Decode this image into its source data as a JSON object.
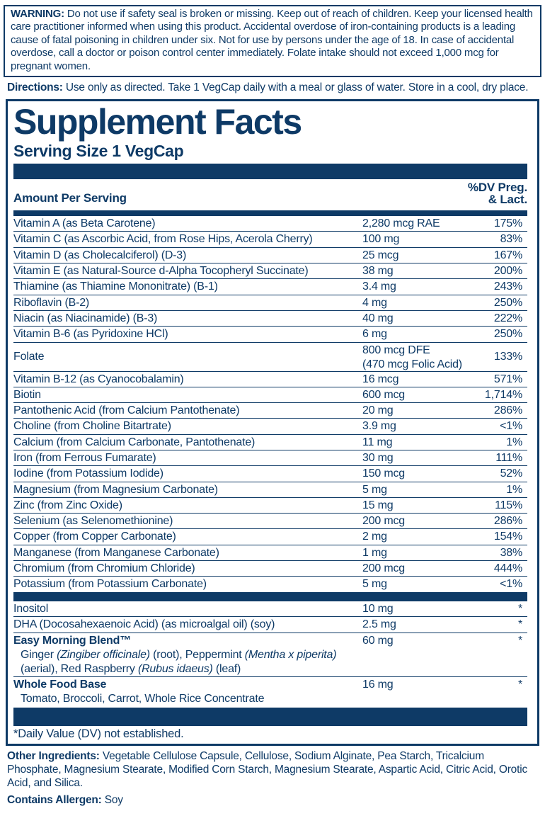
{
  "colors": {
    "navy": "#0e3a66",
    "background": "#ffffff"
  },
  "warning": {
    "label": "WARNING:",
    "text": "Do not use if safety seal is broken or missing. Keep out of reach of children. Keep your licensed health care practitioner informed when using this product. Accidental overdose of iron-containing products is a leading cause of fatal poisoning in children under six. Not for use by persons under the age of 18. In case of accidental overdose, call a doctor or poison control center immediately. Folate intake should not exceed 1,000 mcg for pregnant women."
  },
  "directions": {
    "label": "Directions:",
    "text": "Use only as directed. Take 1 VegCap daily with a meal or glass of water. Store in a cool, dry place."
  },
  "panel": {
    "title": "Supplement Facts",
    "serving_size": "Serving Size 1 VegCap",
    "col_left_header": "Amount Per Serving",
    "dv_header_line1": "%DV Preg.",
    "dv_header_line2": "& Lact.",
    "rows": [
      {
        "name": "Vitamin A (as Beta Carotene)",
        "amount": "2,280 mcg RAE",
        "dv": "175%"
      },
      {
        "name": "Vitamin C (as Ascorbic Acid, from Rose Hips, Acerola Cherry)",
        "amount": "100 mg",
        "dv": "83%"
      },
      {
        "name": "Vitamin D (as Cholecalciferol) (D-3)",
        "amount": "25 mcg",
        "dv": "167%"
      },
      {
        "name": "Vitamin E (as Natural-Source d-Alpha Tocopheryl Succinate)",
        "amount": "38 mg",
        "dv": "200%"
      },
      {
        "name": "Thiamine (as Thiamine Mononitrate) (B-1)",
        "amount": "3.4 mg",
        "dv": "243%"
      },
      {
        "name": "Riboflavin (B-2)",
        "amount": "4 mg",
        "dv": "250%"
      },
      {
        "name": "Niacin (as Niacinamide) (B-3)",
        "amount": "40 mg",
        "dv": "222%"
      },
      {
        "name": "Vitamin B-6 (as Pyridoxine HCl)",
        "amount": "6 mg",
        "dv": "250%"
      },
      {
        "name": "Folate",
        "amount": "800 mcg DFE",
        "amount2": "(470 mcg Folic Acid)",
        "dv": "133%"
      },
      {
        "name": "Vitamin B-12 (as Cyanocobalamin)",
        "amount": "16 mcg",
        "dv": "571%"
      },
      {
        "name": "Biotin",
        "amount": "600 mcg",
        "dv": "1,714%"
      },
      {
        "name": "Pantothenic Acid (from Calcium Pantothenate)",
        "amount": "20 mg",
        "dv": "286%"
      },
      {
        "name": "Choline (from Choline Bitartrate)",
        "amount": "3.9 mg",
        "dv": "<1%"
      },
      {
        "name": "Calcium (from Calcium Carbonate, Pantothenate)",
        "amount": "11 mg",
        "dv": "1%"
      },
      {
        "name": "Iron (from Ferrous Fumarate)",
        "amount": "30 mg",
        "dv": "111%"
      },
      {
        "name": "Iodine (from Potassium Iodide)",
        "amount": "150 mcg",
        "dv": "52%"
      },
      {
        "name": "Magnesium (from Magnesium Carbonate)",
        "amount": "5 mg",
        "dv": "1%"
      },
      {
        "name": "Zinc (from Zinc Oxide)",
        "amount": "15 mg",
        "dv": "115%"
      },
      {
        "name": "Selenium (as Selenomethionine)",
        "amount": "200 mcg",
        "dv": "286%"
      },
      {
        "name": "Copper (from Copper Carbonate)",
        "amount": "2 mg",
        "dv": "154%"
      },
      {
        "name": "Manganese (from Manganese Carbonate)",
        "amount": "1 mg",
        "dv": "38%"
      },
      {
        "name": "Chromium (from Chromium Chloride)",
        "amount": "200 mcg",
        "dv": "444%"
      },
      {
        "name": "Potassium (from Potassium Carbonate)",
        "amount": "5 mg",
        "dv": "<1%"
      },
      {
        "divider": true
      },
      {
        "name": "Inositol",
        "amount": "10 mg",
        "dv": "*"
      },
      {
        "name": "DHA (Docosahexaenoic Acid) (as microalgal oil) (soy)",
        "amount": "2.5 mg",
        "dv": "*"
      },
      {
        "name": "Easy Morning Blend™",
        "bold": true,
        "amount": "60 mg",
        "dv": "*",
        "details": [
          [
            [
              "n",
              "Ginger "
            ],
            [
              "i",
              "(Zingiber officinale)"
            ],
            [
              "n",
              " (root), Peppermint "
            ],
            [
              "i",
              "(Mentha x piperita)"
            ]
          ],
          [
            [
              "n",
              "(aerial), Red Raspberry "
            ],
            [
              "i",
              "(Rubus idaeus)"
            ],
            [
              "n",
              " (leaf)"
            ]
          ]
        ]
      },
      {
        "name": "Whole Food Base",
        "bold": true,
        "amount": "16 mg",
        "dv": "*",
        "details": [
          [
            [
              "n",
              "Tomato, Broccoli, Carrot, Whole Rice Concentrate"
            ]
          ]
        ]
      }
    ],
    "footnote": "*Daily Value (DV) not established."
  },
  "other_ingredients": {
    "label": "Other Ingredients:",
    "text": "Vegetable Cellulose Capsule, Cellulose, Sodium Alginate, Pea Starch, Tricalcium Phosphate, Magnesium Stearate, Modified Corn Starch, Magnesium Stearate, Aspartic Acid, Citric Acid, Orotic Acid, and Silica."
  },
  "allergen": {
    "label": "Contains Allergen:",
    "text": "Soy"
  }
}
